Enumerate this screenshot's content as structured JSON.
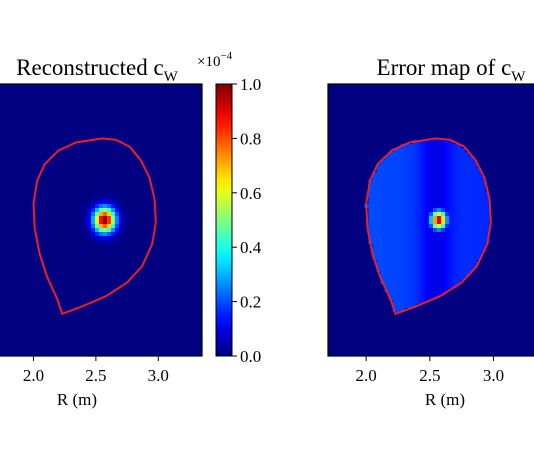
{
  "chart_data": [
    {
      "type": "heatmap",
      "title": "Reconstructed c",
      "title_subscript": "W",
      "xlabel": "R (m)",
      "x_ticks": [
        2.0,
        2.5,
        3.0
      ],
      "x_tick_labels": [
        "2.0",
        "2.5",
        "3.0"
      ],
      "xlim": [
        1.7,
        3.35
      ],
      "ylim": [
        -1.0,
        1.0
      ],
      "colormap": "jet",
      "boundary_color": "#e8202a",
      "background_level": 0.0,
      "peak": {
        "R": 2.57,
        "Z": 0.0,
        "value": 1.0,
        "width_R": 0.085,
        "width_Z": 0.09
      },
      "halo": null,
      "colorbar": {
        "range": [
          0.0,
          1.0
        ],
        "ticks": [
          0.0,
          0.2,
          0.4,
          0.6,
          0.8,
          1.0
        ],
        "tick_labels": [
          "0.0",
          "0.2",
          "0.4",
          "0.6",
          "0.8",
          "1.0"
        ],
        "multiplier_base": "×10",
        "multiplier_exponent": "−4"
      }
    },
    {
      "type": "heatmap",
      "title": "Error map of c",
      "title_subscript": "W",
      "xlabel": "R (m)",
      "x_ticks": [
        2.0,
        2.5,
        3.0
      ],
      "x_tick_labels": [
        "2.0",
        "2.5",
        "3.0"
      ],
      "xlim": [
        1.7,
        3.35
      ],
      "ylim": [
        -1.0,
        1.0
      ],
      "colormap": "jet",
      "boundary_color": "#e8202a",
      "background_level": 0.0,
      "peak": {
        "R": 2.57,
        "Z": 0.0,
        "value": 0.95,
        "width_R": 0.06,
        "width_Z": 0.065
      },
      "halo": {
        "inside_level_left": 0.2,
        "inside_level_right": 0.16,
        "dip_R": 2.55,
        "dip_level": 0.1
      }
    }
  ],
  "plasma_boundary": [
    [
      2.55,
      0.6
    ],
    [
      2.66,
      0.59
    ],
    [
      2.77,
      0.54
    ],
    [
      2.86,
      0.44
    ],
    [
      2.93,
      0.31
    ],
    [
      2.97,
      0.15
    ],
    [
      2.98,
      -0.02
    ],
    [
      2.95,
      -0.18
    ],
    [
      2.87,
      -0.34
    ],
    [
      2.75,
      -0.46
    ],
    [
      2.58,
      -0.56
    ],
    [
      2.38,
      -0.64
    ],
    [
      2.23,
      -0.69
    ],
    [
      2.19,
      -0.58
    ],
    [
      2.11,
      -0.42
    ],
    [
      2.05,
      -0.25
    ],
    [
      2.01,
      -0.06
    ],
    [
      2.0,
      0.12
    ],
    [
      2.03,
      0.29
    ],
    [
      2.09,
      0.41
    ],
    [
      2.2,
      0.51
    ],
    [
      2.34,
      0.57
    ],
    [
      2.55,
      0.6
    ]
  ]
}
